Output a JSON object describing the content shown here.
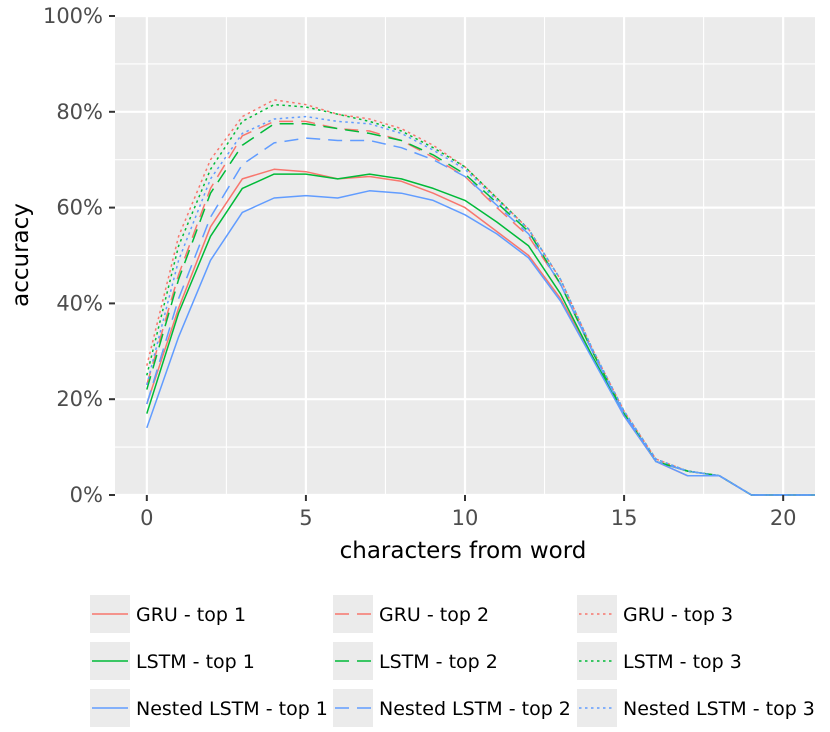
{
  "chart_data": {
    "type": "line",
    "title": "",
    "xlabel": "characters from word",
    "ylabel": "accuracy",
    "xlim": [
      -1,
      21
    ],
    "ylim": [
      0,
      1
    ],
    "x_ticks": [
      0,
      5,
      10,
      15,
      20
    ],
    "x_tick_labels": [
      "0",
      "5",
      "10",
      "15",
      "20"
    ],
    "y_ticks": [
      0,
      0.2,
      0.4,
      0.6,
      0.8,
      1.0
    ],
    "y_tick_labels": [
      "0%",
      "20%",
      "40%",
      "60%",
      "80%",
      "100%"
    ],
    "grid": true,
    "legend_position": "bottom",
    "x": [
      0,
      1,
      2,
      3,
      4,
      5,
      6,
      7,
      8,
      9,
      10,
      11,
      12,
      13,
      14,
      15,
      16,
      17,
      18,
      19,
      20,
      21
    ],
    "series": [
      {
        "name": "GRU - top 1",
        "color": "#F8766D",
        "dash": "solid",
        "values": [
          0.19,
          0.39,
          0.56,
          0.66,
          0.68,
          0.675,
          0.66,
          0.665,
          0.655,
          0.63,
          0.6,
          0.55,
          0.5,
          0.41,
          0.29,
          0.165,
          0.07,
          0.04,
          0.04,
          0.0,
          0.0,
          0.0
        ]
      },
      {
        "name": "GRU - top 2",
        "color": "#F8766D",
        "dash": "long",
        "values": [
          0.23,
          0.46,
          0.64,
          0.75,
          0.78,
          0.78,
          0.765,
          0.76,
          0.74,
          0.705,
          0.665,
          0.6,
          0.54,
          0.44,
          0.3,
          0.17,
          0.07,
          0.05,
          0.04,
          0.0,
          0.0,
          0.0
        ]
      },
      {
        "name": "GRU - top 3",
        "color": "#F8766D",
        "dash": "dotted",
        "values": [
          0.27,
          0.54,
          0.7,
          0.79,
          0.825,
          0.815,
          0.795,
          0.785,
          0.765,
          0.73,
          0.685,
          0.62,
          0.555,
          0.45,
          0.305,
          0.175,
          0.075,
          0.05,
          0.04,
          0.0,
          0.0,
          0.0
        ]
      },
      {
        "name": "LSTM - top 1",
        "color": "#00BA38",
        "dash": "solid",
        "values": [
          0.17,
          0.38,
          0.54,
          0.64,
          0.67,
          0.67,
          0.66,
          0.67,
          0.66,
          0.64,
          0.615,
          0.57,
          0.52,
          0.42,
          0.29,
          0.17,
          0.07,
          0.05,
          0.04,
          0.0,
          0.0,
          0.0
        ]
      },
      {
        "name": "LSTM - top 2",
        "color": "#00BA38",
        "dash": "long",
        "values": [
          0.22,
          0.45,
          0.63,
          0.73,
          0.775,
          0.775,
          0.765,
          0.755,
          0.74,
          0.71,
          0.67,
          0.61,
          0.55,
          0.44,
          0.3,
          0.17,
          0.07,
          0.05,
          0.04,
          0.0,
          0.0,
          0.0
        ]
      },
      {
        "name": "LSTM - top 3",
        "color": "#00BA38",
        "dash": "dotted",
        "values": [
          0.25,
          0.52,
          0.68,
          0.78,
          0.815,
          0.81,
          0.795,
          0.78,
          0.76,
          0.725,
          0.685,
          0.62,
          0.555,
          0.45,
          0.305,
          0.175,
          0.075,
          0.05,
          0.04,
          0.0,
          0.0,
          0.0
        ]
      },
      {
        "name": "Nested LSTM - top 1",
        "color": "#619CFF",
        "dash": "solid",
        "values": [
          0.14,
          0.33,
          0.49,
          0.59,
          0.62,
          0.625,
          0.62,
          0.635,
          0.63,
          0.615,
          0.585,
          0.545,
          0.495,
          0.405,
          0.285,
          0.165,
          0.07,
          0.04,
          0.04,
          0.0,
          0.0,
          0.0
        ]
      },
      {
        "name": "Nested LSTM - top 2",
        "color": "#619CFF",
        "dash": "long",
        "values": [
          0.19,
          0.41,
          0.58,
          0.69,
          0.735,
          0.745,
          0.74,
          0.74,
          0.725,
          0.7,
          0.665,
          0.605,
          0.545,
          0.44,
          0.3,
          0.17,
          0.07,
          0.05,
          0.04,
          0.0,
          0.0,
          0.0
        ]
      },
      {
        "name": "Nested LSTM - top 3",
        "color": "#619CFF",
        "dash": "dotted",
        "values": [
          0.23,
          0.49,
          0.66,
          0.755,
          0.785,
          0.79,
          0.78,
          0.775,
          0.755,
          0.72,
          0.68,
          0.615,
          0.555,
          0.45,
          0.305,
          0.175,
          0.075,
          0.05,
          0.04,
          0.0,
          0.0,
          0.0
        ]
      }
    ],
    "legend": [
      "GRU - top 1",
      "GRU - top 2",
      "GRU - top 3",
      "LSTM - top 1",
      "LSTM - top 2",
      "LSTM - top 3",
      "Nested LSTM - top 1",
      "Nested LSTM - top 2",
      "Nested LSTM - top 3"
    ]
  }
}
